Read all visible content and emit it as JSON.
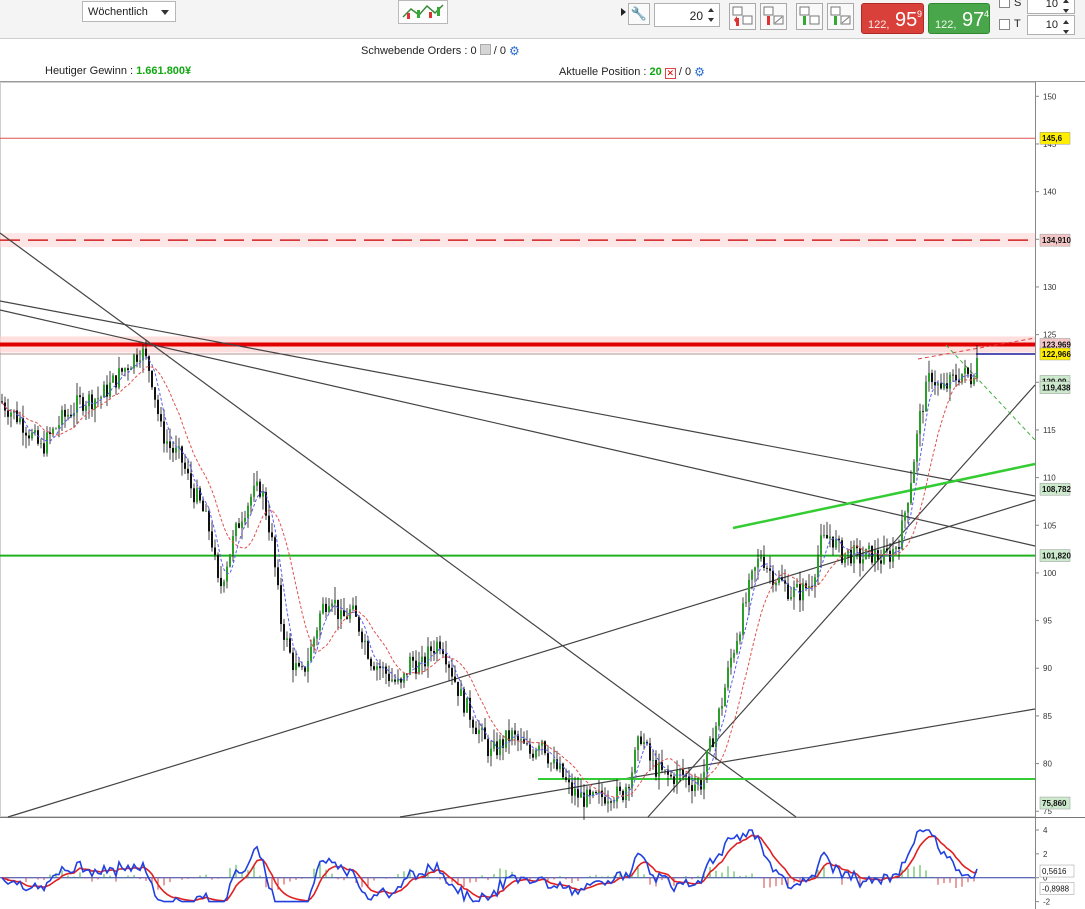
{
  "toolbar": {
    "timeframe": "Wöchentlich",
    "quantity": "20",
    "sell": {
      "small": "122,",
      "big": "95",
      "sup": "9"
    },
    "buy": {
      "small": "122,",
      "big": "97",
      "sup": "4"
    },
    "s_label": "S",
    "t_label": "T",
    "s_value": "10",
    "t_value": "10",
    "colors": {
      "sell": "#d9403a",
      "buy": "#4aa64a"
    }
  },
  "info": {
    "pending_label": "Schwebende Orders : 0",
    "pending_sep": " / 0",
    "profit_label": "Heutiger Gewinn : ",
    "profit_value": "1.661.800¥",
    "position_label": "Aktuelle Position : ",
    "position_value": "20",
    "position_sep": " / 0"
  },
  "chart_data": [
    {
      "type": "candlestick",
      "yticks": [
        "150",
        "145",
        "140",
        "135",
        "130",
        "125",
        "120",
        "115",
        "110",
        "105",
        "100",
        "95",
        "90",
        "85",
        "80",
        "75"
      ],
      "ylim": [
        74.5,
        151.5
      ],
      "price_tags": [
        {
          "label": "145,6",
          "value": 145.6,
          "color": "#ffee00"
        },
        {
          "label": "134,910",
          "value": 134.91,
          "color": "#f3c7c7"
        },
        {
          "label": "123,969",
          "value": 123.969,
          "color": "#f3c7c7"
        },
        {
          "label": "122,966",
          "value": 122.966,
          "color": "#ffee00"
        },
        {
          "label": "120,09",
          "value": 120.09,
          "color": "#cde9cd"
        },
        {
          "label": "119,438",
          "value": 119.438,
          "color": "#cde9cd"
        },
        {
          "label": "108,782",
          "value": 108.782,
          "color": "#cde9cd"
        },
        {
          "label": "101,820",
          "value": 101.82,
          "color": "#cde9cd"
        },
        {
          "label": "75,860",
          "value": 75.86,
          "color": "#cde9cd"
        }
      ],
      "levels": [
        {
          "value": 145.6,
          "color": "#e05050",
          "style": "thin"
        },
        {
          "value": 134.91,
          "color": "#d02020",
          "style": "dashed-glow"
        },
        {
          "value": 123.969,
          "color": "#e00000",
          "style": "thick-glow"
        },
        {
          "value": 122.966,
          "color": "#1a1a9a",
          "style": "current"
        },
        {
          "value": 101.82,
          "color": "#20b020",
          "style": "solid"
        }
      ],
      "series_path": [
        [
          0,
          118
        ],
        [
          20,
          116
        ],
        [
          40,
          113
        ],
        [
          60,
          116
        ],
        [
          80,
          118
        ],
        [
          100,
          118.5
        ],
        [
          120,
          121
        ],
        [
          140,
          123.5
        ],
        [
          150,
          121
        ],
        [
          160,
          115
        ],
        [
          170,
          113
        ],
        [
          180,
          112
        ],
        [
          190,
          109
        ],
        [
          200,
          107
        ],
        [
          210,
          104
        ],
        [
          218,
          98
        ],
        [
          228,
          102
        ],
        [
          240,
          106
        ],
        [
          250,
          108
        ],
        [
          260,
          109
        ],
        [
          270,
          104
        ],
        [
          280,
          95
        ],
        [
          290,
          91
        ],
        [
          300,
          89
        ],
        [
          310,
          92
        ],
        [
          320,
          96
        ],
        [
          330,
          98
        ],
        [
          340,
          95
        ],
        [
          350,
          96
        ],
        [
          360,
          94
        ],
        [
          370,
          91
        ],
        [
          380,
          90
        ],
        [
          390,
          89
        ],
        [
          400,
          88
        ],
        [
          410,
          91
        ],
        [
          420,
          90
        ],
        [
          430,
          92
        ],
        [
          440,
          93
        ],
        [
          450,
          90
        ],
        [
          460,
          87
        ],
        [
          470,
          85
        ],
        [
          480,
          83
        ],
        [
          490,
          81
        ],
        [
          500,
          82
        ],
        [
          510,
          83
        ],
        [
          520,
          82
        ],
        [
          530,
          81
        ],
        [
          540,
          83
        ],
        [
          550,
          80
        ],
        [
          560,
          79
        ],
        [
          570,
          77
        ],
        [
          580,
          76.5
        ],
        [
          590,
          76
        ],
        [
          600,
          76.5
        ],
        [
          610,
          77
        ],
        [
          620,
          76.5
        ],
        [
          630,
          79
        ],
        [
          640,
          83
        ],
        [
          650,
          80
        ],
        [
          660,
          79
        ],
        [
          670,
          78.5
        ],
        [
          680,
          79
        ],
        [
          690,
          78
        ],
        [
          700,
          78
        ],
        [
          710,
          82
        ],
        [
          720,
          86
        ],
        [
          730,
          91
        ],
        [
          740,
          95
        ],
        [
          750,
          99
        ],
        [
          760,
          102
        ],
        [
          770,
          100
        ],
        [
          780,
          99
        ],
        [
          790,
          98
        ],
        [
          800,
          98
        ],
        [
          810,
          99
        ],
        [
          820,
          103
        ],
        [
          830,
          104
        ],
        [
          840,
          102
        ],
        [
          850,
          102
        ],
        [
          860,
          101.5
        ],
        [
          870,
          102
        ],
        [
          880,
          101.5
        ],
        [
          890,
          102
        ],
        [
          900,
          104
        ],
        [
          910,
          110
        ],
        [
          920,
          117
        ],
        [
          930,
          121
        ],
        [
          940,
          119
        ],
        [
          950,
          120
        ],
        [
          960,
          121
        ],
        [
          970,
          120.5
        ],
        [
          976,
          122.5
        ]
      ]
    },
    {
      "type": "macd",
      "yticks": [
        "4",
        "2",
        "0",
        "-2"
      ],
      "ylim": [
        -2.2,
        4.5
      ],
      "price_tags": [
        {
          "label": "0,5616",
          "value": 0.5616,
          "color": "#ffffff"
        },
        {
          "label": "-0,8988",
          "value": -0.8988,
          "color": "#ffffff"
        }
      ]
    }
  ]
}
